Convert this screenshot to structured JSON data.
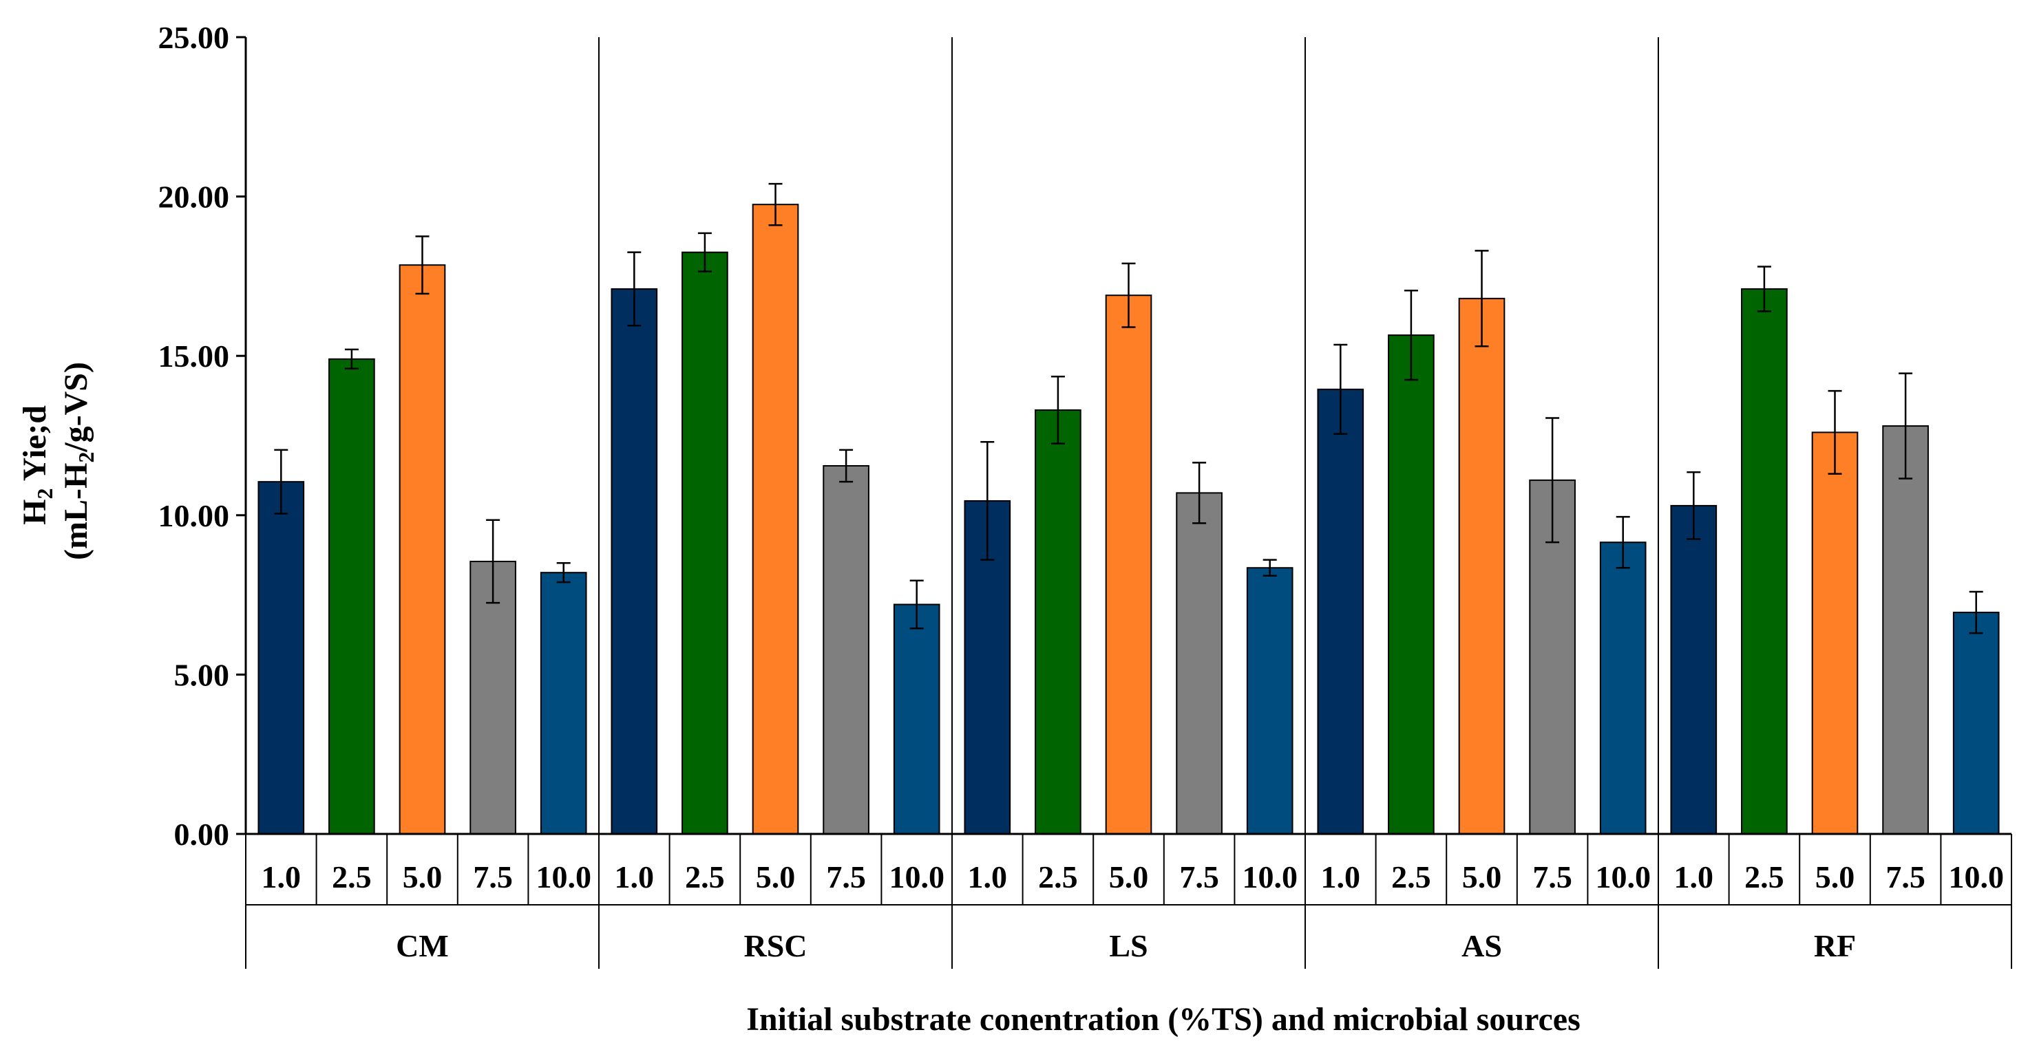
{
  "chart_data": {
    "type": "bar",
    "title": "",
    "ylabel_line1_main": "H",
    "ylabel_line1_sub": "2",
    "ylabel_line1_rest": " Yie;d",
    "ylabel_line2_a": "(mL-H",
    "ylabel_line2_sub": "2",
    "ylabel_line2_b": "/g-VS)",
    "xlabel": "Initial substrate conentration (%TS)  and microbial sources",
    "ylim": [
      0,
      25
    ],
    "y_ticks": [
      "0.00",
      "5.00",
      "10.00",
      "15.00",
      "20.00",
      "25.00"
    ],
    "grid": false,
    "legend": "none",
    "categories": [
      "1.0",
      "2.5",
      "5.0",
      "7.5",
      "10.0"
    ],
    "bar_colors": [
      "#002f5f",
      "#006400",
      "#ff7f27",
      "#7f7f7f",
      "#004c7f"
    ],
    "groups": [
      {
        "name": "CM",
        "values": [
          11.05,
          14.9,
          17.85,
          8.55,
          8.2
        ],
        "errors": [
          1.0,
          0.3,
          0.9,
          1.3,
          0.3
        ]
      },
      {
        "name": "RSC",
        "values": [
          17.1,
          18.25,
          19.75,
          11.55,
          7.2
        ],
        "errors": [
          1.15,
          0.6,
          0.65,
          0.5,
          0.75
        ]
      },
      {
        "name": "LS",
        "values": [
          10.45,
          13.3,
          16.9,
          10.7,
          8.35
        ],
        "errors": [
          1.85,
          1.05,
          1.0,
          0.95,
          0.25
        ]
      },
      {
        "name": "AS",
        "values": [
          13.95,
          15.65,
          16.8,
          11.1,
          9.15
        ],
        "errors": [
          1.4,
          1.4,
          1.5,
          1.95,
          0.8
        ]
      },
      {
        "name": "RF",
        "values": [
          10.3,
          17.1,
          12.6,
          12.8,
          6.95
        ],
        "errors": [
          1.05,
          0.7,
          1.3,
          1.65,
          0.65
        ]
      }
    ]
  }
}
